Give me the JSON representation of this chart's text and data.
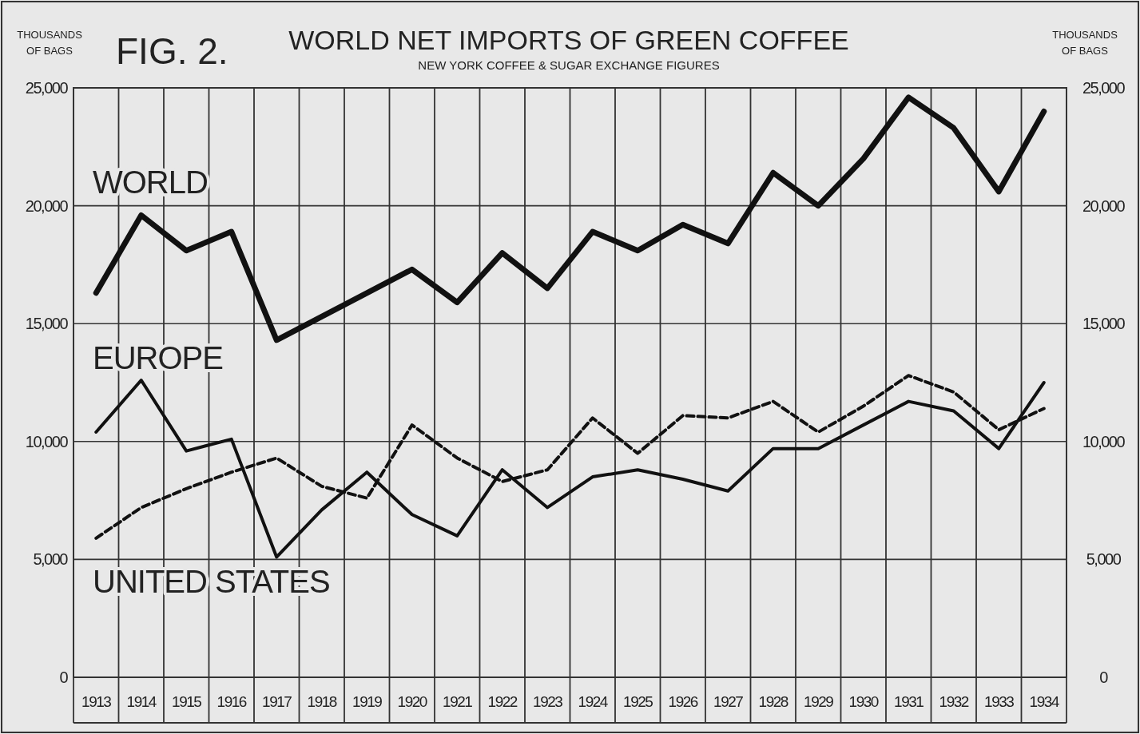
{
  "chart_data": {
    "type": "line",
    "title": "WORLD NET IMPORTS OF GREEN COFFEE",
    "subtitle": "NEW YORK COFFEE & SUGAR EXCHANGE FIGURES",
    "ylabel": "THOUSANDS OF BAGS",
    "y2label": "THOUSANDS OF BAGS",
    "annotations": [
      "FIG. 2."
    ],
    "categories": [
      "1913",
      "1914",
      "1915",
      "1916",
      "1917",
      "1918",
      "1919",
      "1920",
      "1921",
      "1922",
      "1923",
      "1924",
      "1925",
      "1926",
      "1927",
      "1928",
      "1929",
      "1930",
      "1931",
      "1932",
      "1933",
      "1934"
    ],
    "series": [
      {
        "name": "WORLD",
        "color": "#111111",
        "line_style": "solid",
        "values": [
          16300,
          19600,
          18100,
          18900,
          14300,
          15300,
          16300,
          17300,
          15900,
          18000,
          16500,
          18900,
          18100,
          19200,
          18400,
          21400,
          20000,
          22000,
          24600,
          23300,
          20600,
          24000
        ]
      },
      {
        "name": "EUROPE",
        "color": "#111111",
        "line_style": "solid",
        "values": [
          10400,
          12600,
          9600,
          10100,
          5100,
          7100,
          8700,
          6900,
          6000,
          8800,
          7200,
          8500,
          8800,
          8400,
          7900,
          9700,
          9700,
          10700,
          11700,
          11300,
          9700,
          12500
        ]
      },
      {
        "name": "UNITED STATES",
        "color": "#111111",
        "line_style": "dashed",
        "values": [
          5900,
          7200,
          8000,
          8700,
          9300,
          8100,
          7600,
          10700,
          9300,
          8300,
          8800,
          11000,
          9500,
          11100,
          11000,
          11700,
          10400,
          11500,
          12800,
          12100,
          10500,
          11400
        ]
      }
    ],
    "ylim": [
      0,
      25000
    ],
    "yticks": [
      {
        "value": 0,
        "label": "0"
      },
      {
        "value": 5000,
        "label": "5,000"
      },
      {
        "value": 10000,
        "label": "10,000"
      },
      {
        "value": 15000,
        "label": "15,000"
      },
      {
        "value": 20000,
        "label": "20,000"
      },
      {
        "value": 25000,
        "label": "25,000"
      }
    ],
    "y2lim": [
      0,
      25000
    ],
    "y2ticks": [
      {
        "value": 0,
        "label": "0"
      },
      {
        "value": 5000,
        "label": "5,000"
      },
      {
        "value": 10000,
        "label": "10,000"
      },
      {
        "value": 15000,
        "label": "15,000"
      },
      {
        "value": 20000,
        "label": "20,000"
      },
      {
        "value": 25000,
        "label": "25,000"
      }
    ],
    "grid": true,
    "marker": "none"
  }
}
